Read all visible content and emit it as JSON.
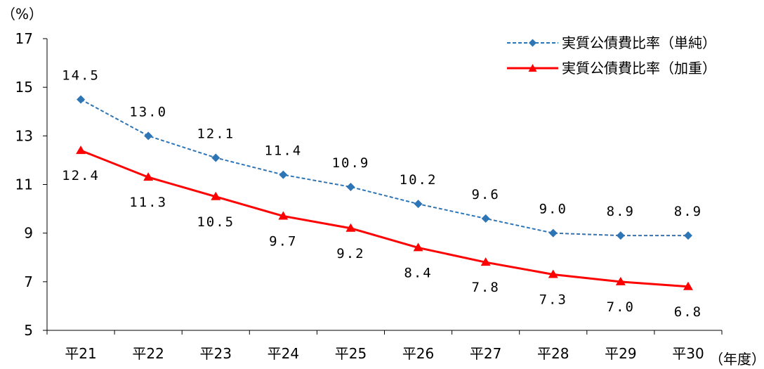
{
  "chart_data": {
    "type": "line",
    "y_unit_label": "（%）",
    "x_unit_label": "（年度）",
    "categories": [
      "平21",
      "平22",
      "平23",
      "平24",
      "平25",
      "平26",
      "平27",
      "平28",
      "平29",
      "平30"
    ],
    "ylim": [
      5,
      17
    ],
    "yticks": [
      5,
      7,
      9,
      11,
      13,
      15,
      17
    ],
    "grid": false,
    "legend_position": "top-right",
    "series": [
      {
        "name": "実質公債費比率（単純）",
        "values": [
          14.5,
          13.0,
          12.1,
          11.4,
          10.9,
          10.2,
          9.6,
          9.0,
          8.9,
          8.9
        ],
        "labels": [
          "14.5",
          "13.0",
          "12.1",
          "11.4",
          "10.9",
          "10.2",
          "9.6",
          "9.0",
          "8.9",
          "8.9"
        ],
        "color": "#2E75B6",
        "line_style": "dashed",
        "marker": "diamond"
      },
      {
        "name": "実質公債費比率（加重）",
        "values": [
          12.4,
          11.3,
          10.5,
          9.7,
          9.2,
          8.4,
          7.8,
          7.3,
          7.0,
          6.8
        ],
        "labels": [
          "12.4",
          "11.3",
          "10.5",
          "9.7",
          "9.2",
          "8.4",
          "7.8",
          "7.3",
          "7.0",
          "6.8"
        ],
        "color": "#FF0000",
        "line_style": "solid",
        "marker": "triangle"
      }
    ]
  }
}
